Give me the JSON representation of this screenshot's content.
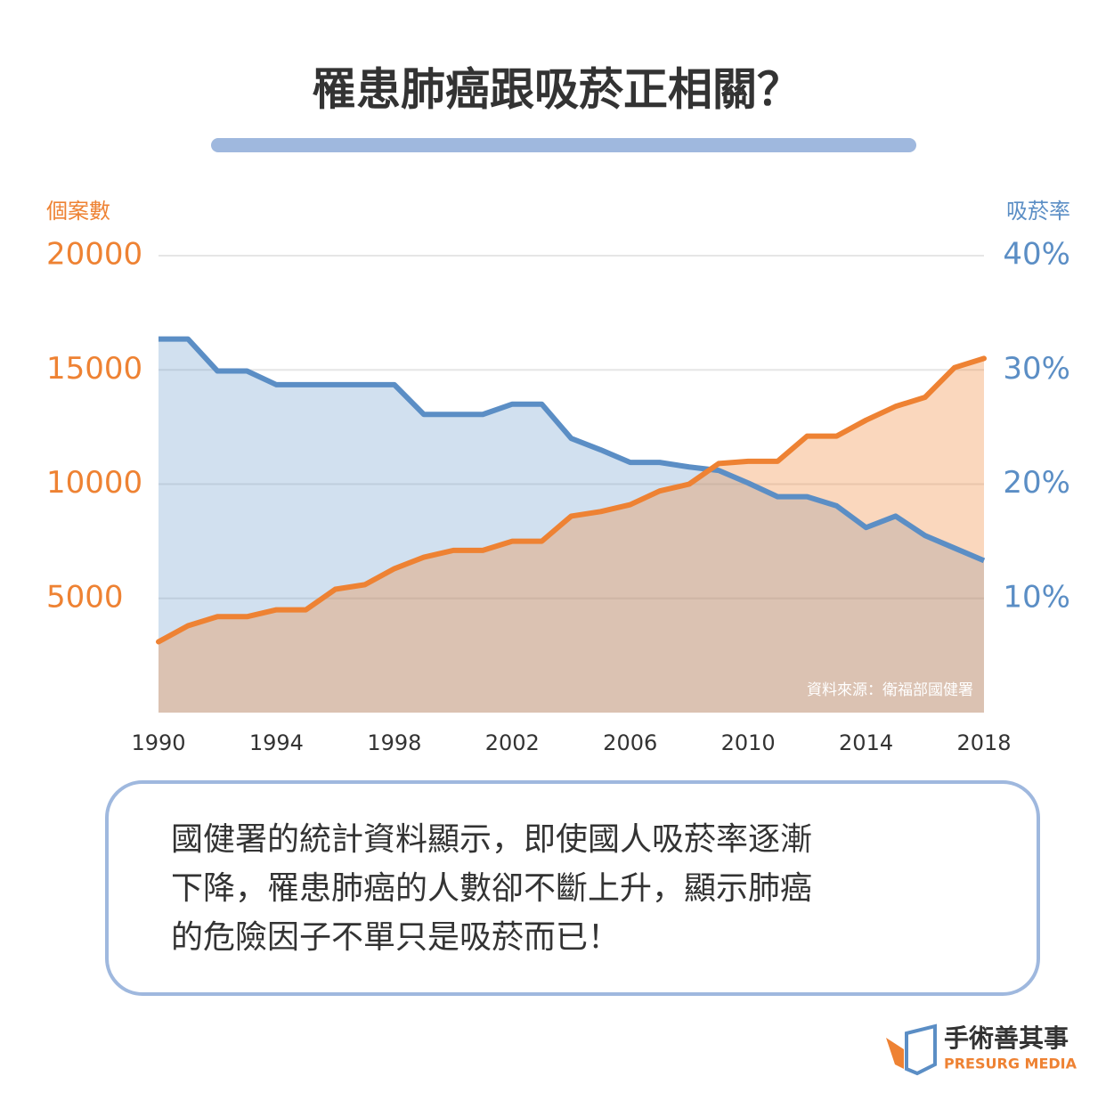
{
  "chart_data": {
    "type": "area",
    "title": "罹患肺癌跟吸菸正相關？",
    "y_label": "個案數",
    "y2_label": "吸菸率",
    "source": "資料來源：衛福部國健署",
    "x": [
      1990,
      1991,
      1992,
      1993,
      1994,
      1995,
      1996,
      1997,
      1998,
      1999,
      2000,
      2001,
      2002,
      2003,
      2004,
      2005,
      2006,
      2007,
      2008,
      2009,
      2010,
      2011,
      2012,
      2013,
      2014,
      2015,
      2016,
      2017,
      2018
    ],
    "xlim": [
      1990,
      2018
    ],
    "xticks": [
      1990,
      1994,
      1998,
      2002,
      2006,
      2010,
      2014,
      2018
    ],
    "ylim": [
      0,
      20000
    ],
    "yticks": [
      5000,
      10000,
      15000,
      20000
    ],
    "y2lim": [
      0,
      40
    ],
    "y2ticks": [
      {
        "value": 10,
        "label": "10%"
      },
      {
        "value": 20,
        "label": "20%"
      },
      {
        "value": 30,
        "label": "30%"
      },
      {
        "value": 40,
        "label": "40%"
      }
    ],
    "grid": true,
    "series": [
      {
        "name": "個案數",
        "color": "#ee8233",
        "values": [
          3100,
          3800,
          4200,
          4200,
          4500,
          4500,
          5400,
          5600,
          6300,
          6800,
          7100,
          7100,
          7500,
          7500,
          8600,
          8800,
          9100,
          9700,
          10000,
          10900,
          11000,
          11000,
          12100,
          12100,
          12800,
          13400,
          13800,
          15100,
          15500
        ]
      },
      {
        "name": "吸菸率",
        "color": "#5b8ec5",
        "axis": "y2",
        "values": [
          32.7,
          32.7,
          29.9,
          29.9,
          28.7,
          28.7,
          28.7,
          28.7,
          28.7,
          26.1,
          26.1,
          26.1,
          27.0,
          27.0,
          24.0,
          23.0,
          21.9,
          21.9,
          21.5,
          21.2,
          20.1,
          18.9,
          18.9,
          18.1,
          16.2,
          17.2,
          15.5,
          14.4,
          13.3
        ]
      }
    ]
  },
  "description": [
    "國健署的統計資料顯示，即使國人吸菸率逐漸",
    "下降，罹患肺癌的人數卻不斷上升，顯示肺癌",
    "的危險因子不單只是吸菸而已！"
  ],
  "logo": {
    "name": "手術善其事",
    "subtitle": "PRESURG MEDIA"
  }
}
